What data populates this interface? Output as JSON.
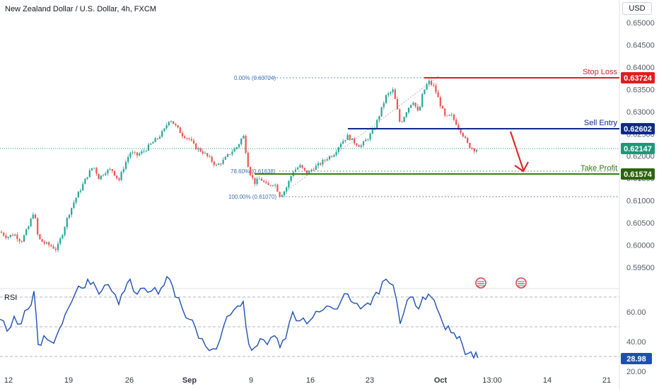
{
  "header": {
    "symbol_title": "New Zealand Dollar / U.S. Dollar, 4h, FXCM",
    "currency": "USD"
  },
  "levels": {
    "stop_loss": {
      "label": "Stop Loss",
      "value": "0.63724",
      "color": "#e01e1e"
    },
    "sell_entry": {
      "label": "Sell Entry",
      "value": "0.62602",
      "color": "#0d2a8a"
    },
    "current": {
      "value": "0.62147",
      "color": "#1a9a7a"
    },
    "take_profit": {
      "label": "Take Profit",
      "value": "0.61574",
      "color": "#3a7a12"
    },
    "rsi_value": {
      "value": "28.98",
      "color": "#1e50b4"
    }
  },
  "fib": {
    "top": "0.00% (0.63724)",
    "mid": "78.60% (0.61638)",
    "bottom": "100.00% (0.61070)"
  },
  "rsi_label": "RSI",
  "colors": {
    "up": "#26a69a",
    "down": "#ef5350",
    "rsi_line": "#1e50b4",
    "arrow": "#e01e1e"
  },
  "chart_data": [
    {
      "type": "candlestick",
      "title": "New Zealand Dollar / U.S. Dollar, 4h, FXCM",
      "ylabel": "USD",
      "ylim": [
        0.593,
        0.652
      ],
      "yticks": [
        "0.65000",
        "0.64500",
        "0.64000",
        "0.63500",
        "0.63000",
        "0.62500",
        "0.62000",
        "0.61500",
        "0.61000",
        "0.60500",
        "0.60000",
        "0.59500"
      ],
      "xticks": [
        "12",
        "19",
        "26",
        "Sep",
        "9",
        "16",
        "23",
        "Oct",
        "13:00",
        "14",
        "21"
      ],
      "horizontal_levels": [
        0.63724,
        0.62602,
        0.62147,
        0.61574
      ],
      "fib_levels": [
        0.63724,
        0.61638,
        0.6107
      ],
      "close_path": [
        [
          0,
          0.603
        ],
        [
          10,
          0.6018
        ],
        [
          20,
          0.6025
        ],
        [
          30,
          0.6008
        ],
        [
          40,
          0.604
        ],
        [
          48,
          0.6078
        ],
        [
          54,
          0.6015
        ],
        [
          62,
          0.6005
        ],
        [
          72,
          0.5998
        ],
        [
          80,
          0.599
        ],
        [
          88,
          0.6025
        ],
        [
          96,
          0.6065
        ],
        [
          106,
          0.6102
        ],
        [
          116,
          0.6132
        ],
        [
          124,
          0.6158
        ],
        [
          132,
          0.6178
        ],
        [
          140,
          0.615
        ],
        [
          148,
          0.6165
        ],
        [
          158,
          0.617
        ],
        [
          168,
          0.6145
        ],
        [
          176,
          0.618
        ],
        [
          184,
          0.6208
        ],
        [
          194,
          0.6202
        ],
        [
          204,
          0.6212
        ],
        [
          214,
          0.6228
        ],
        [
          224,
          0.6242
        ],
        [
          232,
          0.6258
        ],
        [
          240,
          0.6285
        ],
        [
          248,
          0.6268
        ],
        [
          258,
          0.6248
        ],
        [
          268,
          0.6238
        ],
        [
          276,
          0.622
        ],
        [
          286,
          0.621
        ],
        [
          296,
          0.6195
        ],
        [
          306,
          0.6178
        ],
        [
          316,
          0.619
        ],
        [
          326,
          0.6208
        ],
        [
          336,
          0.6222
        ],
        [
          344,
          0.6248
        ],
        [
          352,
          0.6168
        ],
        [
          360,
          0.614
        ],
        [
          368,
          0.615
        ],
        [
          378,
          0.6132
        ],
        [
          388,
          0.614
        ],
        [
          396,
          0.611
        ],
        [
          404,
          0.6125
        ],
        [
          414,
          0.6165
        ],
        [
          424,
          0.6178
        ],
        [
          434,
          0.616
        ],
        [
          442,
          0.6172
        ],
        [
          452,
          0.6182
        ],
        [
          462,
          0.6195
        ],
        [
          472,
          0.6205
        ],
        [
          482,
          0.623
        ],
        [
          492,
          0.6245
        ],
        [
          500,
          0.6232
        ],
        [
          510,
          0.6222
        ],
        [
          520,
          0.624
        ],
        [
          528,
          0.6258
        ],
        [
          536,
          0.629
        ],
        [
          546,
          0.6335
        ],
        [
          556,
          0.6348
        ],
        [
          566,
          0.6272
        ],
        [
          576,
          0.6305
        ],
        [
          584,
          0.6325
        ],
        [
          592,
          0.6295
        ],
        [
          598,
          0.6342
        ],
        [
          606,
          0.6368
        ],
        [
          614,
          0.6355
        ],
        [
          622,
          0.632
        ],
        [
          630,
          0.6285
        ],
        [
          638,
          0.6292
        ],
        [
          646,
          0.6272
        ],
        [
          654,
          0.625
        ],
        [
          662,
          0.6225
        ],
        [
          670,
          0.6215
        ],
        [
          676,
          0.6215
        ]
      ],
      "x_domain": [
        0,
        876
      ]
    },
    {
      "type": "line",
      "title": "RSI",
      "ylim": [
        20,
        85
      ],
      "yticks": [
        "60.00",
        "40.00",
        "20.00"
      ],
      "reference_lines": [
        70,
        50,
        30
      ],
      "last_value": 28.98,
      "values": [
        [
          0,
          55
        ],
        [
          10,
          47
        ],
        [
          20,
          57
        ],
        [
          30,
          52
        ],
        [
          40,
          62
        ],
        [
          48,
          74
        ],
        [
          54,
          38
        ],
        [
          62,
          44
        ],
        [
          72,
          40
        ],
        [
          80,
          44
        ],
        [
          88,
          52
        ],
        [
          96,
          62
        ],
        [
          106,
          72
        ],
        [
          116,
          76
        ],
        [
          124,
          82
        ],
        [
          132,
          80
        ],
        [
          140,
          72
        ],
        [
          148,
          78
        ],
        [
          158,
          74
        ],
        [
          168,
          65
        ],
        [
          176,
          74
        ],
        [
          184,
          82
        ],
        [
          194,
          72
        ],
        [
          204,
          76
        ],
        [
          214,
          74
        ],
        [
          224,
          72
        ],
        [
          232,
          78
        ],
        [
          240,
          82
        ],
        [
          248,
          70
        ],
        [
          258,
          62
        ],
        [
          268,
          55
        ],
        [
          276,
          50
        ],
        [
          286,
          42
        ],
        [
          296,
          34
        ],
        [
          306,
          35
        ],
        [
          316,
          50
        ],
        [
          326,
          58
        ],
        [
          336,
          64
        ],
        [
          344,
          67
        ],
        [
          352,
          38
        ],
        [
          360,
          36
        ],
        [
          368,
          42
        ],
        [
          378,
          38
        ],
        [
          388,
          44
        ],
        [
          396,
          36
        ],
        [
          404,
          42
        ],
        [
          414,
          60
        ],
        [
          424,
          54
        ],
        [
          434,
          52
        ],
        [
          442,
          56
        ],
        [
          452,
          60
        ],
        [
          462,
          64
        ],
        [
          472,
          62
        ],
        [
          482,
          67
        ],
        [
          492,
          72
        ],
        [
          500,
          66
        ],
        [
          510,
          62
        ],
        [
          520,
          66
        ],
        [
          528,
          70
        ],
        [
          536,
          72
        ],
        [
          546,
          82
        ],
        [
          556,
          78
        ],
        [
          566,
          52
        ],
        [
          576,
          68
        ],
        [
          584,
          70
        ],
        [
          592,
          62
        ],
        [
          598,
          70
        ],
        [
          606,
          72
        ],
        [
          614,
          68
        ],
        [
          622,
          58
        ],
        [
          630,
          48
        ],
        [
          638,
          46
        ],
        [
          646,
          42
        ],
        [
          654,
          38
        ],
        [
          662,
          32
        ],
        [
          670,
          29
        ],
        [
          676,
          28.98
        ]
      ],
      "x_domain": [
        0,
        876
      ]
    }
  ]
}
